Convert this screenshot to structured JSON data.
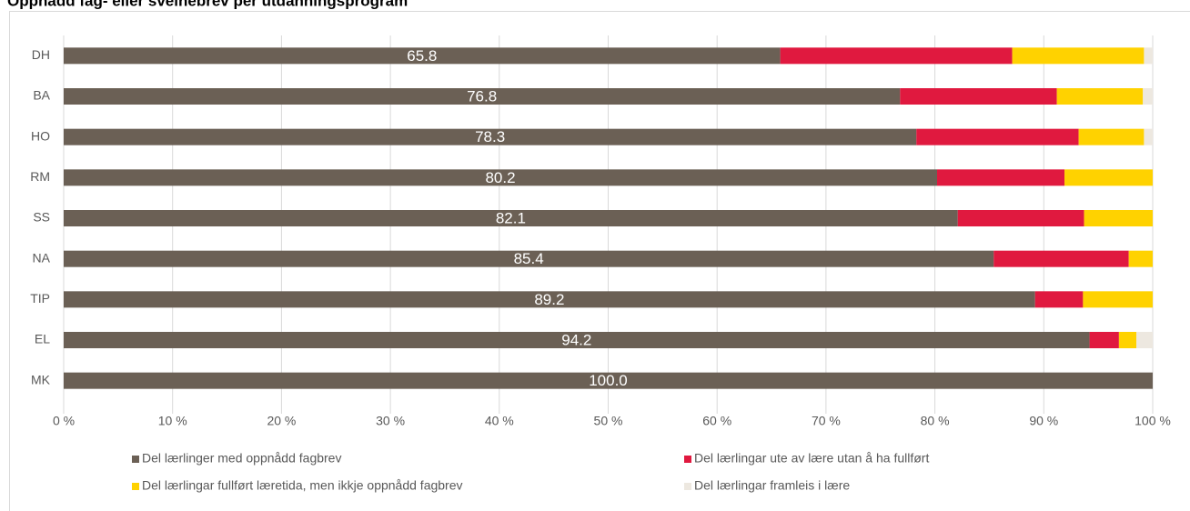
{
  "chart_data": {
    "type": "stacked-barh",
    "title": "Oppnådd fag- eller sveinebrev per utdanningsprogram",
    "categories": [
      "DH",
      "BA",
      "HO",
      "RM",
      "SS",
      "NA",
      "TIP",
      "EL",
      "MK"
    ],
    "series": [
      {
        "name": "Del lærlinger med oppnådd fagbrev",
        "color": "#6b6055",
        "values": [
          65.8,
          76.8,
          78.3,
          80.2,
          82.1,
          85.4,
          89.2,
          94.2,
          100.0
        ],
        "value_labels": [
          "65.8",
          "76.8",
          "78.3",
          "80.2",
          "82.1",
          "85.4",
          "89.2",
          "94.2",
          "100.0"
        ]
      },
      {
        "name": "Del lærlingar ute av lære utan å ha fullført",
        "color": "#e0193f",
        "values": [
          21.3,
          14.4,
          14.9,
          11.7,
          11.6,
          12.4,
          4.4,
          2.7,
          0
        ]
      },
      {
        "name": "Del lærlingar fullført læretida, men ikkje oppnådd fagbrev",
        "color": "#ffd200",
        "values": [
          12.1,
          7.9,
          6.0,
          8.1,
          6.3,
          2.2,
          6.4,
          1.6,
          0
        ]
      },
      {
        "name": "Del lærlingar framleis i lære",
        "color": "#ede8e0",
        "values": [
          0.8,
          0.9,
          0.8,
          0,
          0,
          0,
          0,
          1.5,
          0
        ]
      }
    ],
    "xlim": [
      0,
      100
    ],
    "xticks": [
      {
        "value": 0,
        "label": "0 %"
      },
      {
        "value": 10,
        "label": "10 %"
      },
      {
        "value": 20,
        "label": "20 %"
      },
      {
        "value": 30,
        "label": "30 %"
      },
      {
        "value": 40,
        "label": "40 %"
      },
      {
        "value": 50,
        "label": "50 %"
      },
      {
        "value": 60,
        "label": "60 %"
      },
      {
        "value": 70,
        "label": "70 %"
      },
      {
        "value": 80,
        "label": "80 %"
      },
      {
        "value": 90,
        "label": "90 %"
      },
      {
        "value": 100,
        "label": "100 %"
      }
    ],
    "grid": true
  }
}
